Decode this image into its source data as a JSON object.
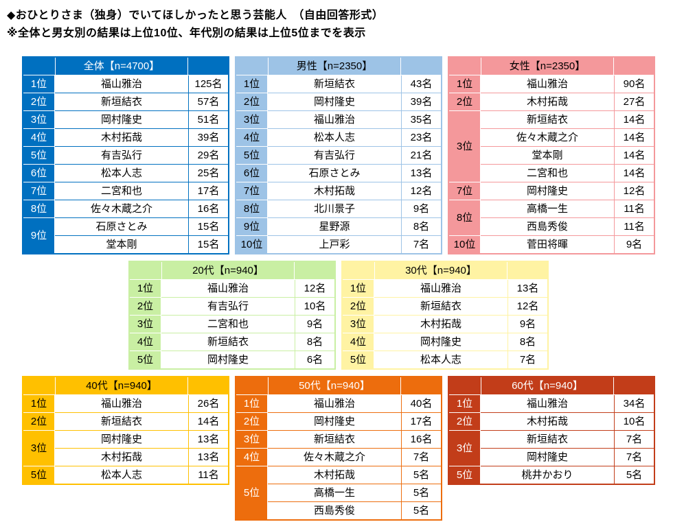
{
  "page": {
    "title": "◆おひとりさま（独身）でいてほしかったと思う芸能人　（自由回答形式）",
    "note": "※全体と男女別の結果は上位10位、年代別の結果は上位5位までを表示"
  },
  "tables": [
    {
      "key": "overall",
      "title": "全体【n=4700】",
      "colors": {
        "header_bg": "#0070C0",
        "header_text": "#FFFFFF",
        "border": "#0070C0"
      },
      "rows": [
        {
          "rank": "1位",
          "span": 1,
          "name": "福山雅治",
          "count": "125名"
        },
        {
          "rank": "2位",
          "span": 1,
          "name": "新垣結衣",
          "count": "57名"
        },
        {
          "rank": "3位",
          "span": 1,
          "name": "岡村隆史",
          "count": "51名"
        },
        {
          "rank": "4位",
          "span": 1,
          "name": "木村拓哉",
          "count": "39名"
        },
        {
          "rank": "5位",
          "span": 1,
          "name": "有吉弘行",
          "count": "29名"
        },
        {
          "rank": "6位",
          "span": 1,
          "name": "松本人志",
          "count": "25名"
        },
        {
          "rank": "7位",
          "span": 1,
          "name": "二宮和也",
          "count": "17名"
        },
        {
          "rank": "8位",
          "span": 1,
          "name": "佐々木蔵之介",
          "count": "16名"
        },
        {
          "rank": "9位",
          "span": 2,
          "name": "石原さとみ",
          "count": "15名"
        },
        {
          "rank": null,
          "name": "堂本剛",
          "count": "15名"
        }
      ]
    },
    {
      "key": "male",
      "title": "男性【n=2350】",
      "colors": {
        "header_bg": "#9DC3E6",
        "header_text": "#000000",
        "border": "#9DC3E6"
      },
      "rows": [
        {
          "rank": "1位",
          "span": 1,
          "name": "新垣結衣",
          "count": "43名"
        },
        {
          "rank": "2位",
          "span": 1,
          "name": "岡村隆史",
          "count": "39名"
        },
        {
          "rank": "3位",
          "span": 1,
          "name": "福山雅治",
          "count": "35名"
        },
        {
          "rank": "4位",
          "span": 1,
          "name": "松本人志",
          "count": "23名"
        },
        {
          "rank": "5位",
          "span": 1,
          "name": "有吉弘行",
          "count": "21名"
        },
        {
          "rank": "6位",
          "span": 1,
          "name": "石原さとみ",
          "count": "13名"
        },
        {
          "rank": "7位",
          "span": 1,
          "name": "木村拓哉",
          "count": "12名"
        },
        {
          "rank": "8位",
          "span": 1,
          "name": "北川景子",
          "count": "9名"
        },
        {
          "rank": "9位",
          "span": 1,
          "name": "星野源",
          "count": "8名"
        },
        {
          "rank": "10位",
          "span": 1,
          "name": "上戸彩",
          "count": "7名"
        }
      ]
    },
    {
      "key": "female",
      "title": "女性【n=2350】",
      "colors": {
        "header_bg": "#F4989B",
        "header_text": "#000000",
        "border": "#F4989B"
      },
      "rows": [
        {
          "rank": "1位",
          "span": 1,
          "name": "福山雅治",
          "count": "90名"
        },
        {
          "rank": "2位",
          "span": 1,
          "name": "木村拓哉",
          "count": "27名"
        },
        {
          "rank": "3位",
          "span": 4,
          "name": "新垣結衣",
          "count": "14名"
        },
        {
          "rank": null,
          "name": "佐々木蔵之介",
          "count": "14名"
        },
        {
          "rank": null,
          "name": "堂本剛",
          "count": "14名"
        },
        {
          "rank": null,
          "name": "二宮和也",
          "count": "14名"
        },
        {
          "rank": "7位",
          "span": 1,
          "name": "岡村隆史",
          "count": "12名"
        },
        {
          "rank": "8位",
          "span": 2,
          "name": "高橋一生",
          "count": "11名"
        },
        {
          "rank": null,
          "name": "西島秀俊",
          "count": "11名"
        },
        {
          "rank": "10位",
          "span": 1,
          "name": "菅田将暉",
          "count": "9名"
        }
      ]
    },
    {
      "key": "20s",
      "title": "20代【n=940】",
      "colors": {
        "header_bg": "#C9EFA3",
        "header_text": "#000000",
        "border": "#C9EFA3"
      },
      "rows": [
        {
          "rank": "1位",
          "span": 1,
          "name": "福山雅治",
          "count": "12名"
        },
        {
          "rank": "2位",
          "span": 1,
          "name": "有吉弘行",
          "count": "10名"
        },
        {
          "rank": "3位",
          "span": 1,
          "name": "二宮和也",
          "count": "9名"
        },
        {
          "rank": "4位",
          "span": 1,
          "name": "新垣結衣",
          "count": "8名"
        },
        {
          "rank": "5位",
          "span": 1,
          "name": "岡村隆史",
          "count": "6名"
        }
      ]
    },
    {
      "key": "30s",
      "title": "30代【n=940】",
      "colors": {
        "header_bg": "#FFF3A3",
        "header_text": "#000000",
        "border": "#FFF3A3"
      },
      "rows": [
        {
          "rank": "1位",
          "span": 1,
          "name": "福山雅治",
          "count": "13名"
        },
        {
          "rank": "2位",
          "span": 1,
          "name": "新垣結衣",
          "count": "12名"
        },
        {
          "rank": "3位",
          "span": 1,
          "name": "木村拓哉",
          "count": "9名"
        },
        {
          "rank": "4位",
          "span": 1,
          "name": "岡村隆史",
          "count": "8名"
        },
        {
          "rank": "5位",
          "span": 1,
          "name": "松本人志",
          "count": "7名"
        }
      ]
    },
    {
      "key": "40s",
      "title": "40代【n=940】",
      "colors": {
        "header_bg": "#FFC000",
        "header_text": "#000000",
        "border": "#FFC000"
      },
      "rows": [
        {
          "rank": "1位",
          "span": 1,
          "name": "福山雅治",
          "count": "26名"
        },
        {
          "rank": "2位",
          "span": 1,
          "name": "新垣結衣",
          "count": "14名"
        },
        {
          "rank": "3位",
          "span": 2,
          "name": "岡村隆史",
          "count": "13名"
        },
        {
          "rank": null,
          "name": "木村拓哉",
          "count": "13名"
        },
        {
          "rank": "5位",
          "span": 1,
          "name": "松本人志",
          "count": "11名"
        }
      ]
    },
    {
      "key": "50s",
      "title": "50代【n=940】",
      "colors": {
        "header_bg": "#ED6D0D",
        "header_text": "#FFFFFF",
        "border": "#ED6D0D"
      },
      "rows": [
        {
          "rank": "1位",
          "span": 1,
          "name": "福山雅治",
          "count": "40名"
        },
        {
          "rank": "2位",
          "span": 1,
          "name": "岡村隆史",
          "count": "17名"
        },
        {
          "rank": "3位",
          "span": 1,
          "name": "新垣結衣",
          "count": "16名"
        },
        {
          "rank": "4位",
          "span": 1,
          "name": "佐々木蔵之介",
          "count": "7名"
        },
        {
          "rank": "5位",
          "span": 3,
          "name": "木村拓哉",
          "count": "5名"
        },
        {
          "rank": null,
          "name": "高橋一生",
          "count": "5名"
        },
        {
          "rank": null,
          "name": "西島秀俊",
          "count": "5名"
        }
      ]
    },
    {
      "key": "60s",
      "title": "60代【n=940】",
      "colors": {
        "header_bg": "#C23D19",
        "header_text": "#FFFFFF",
        "border": "#C23D19"
      },
      "rows": [
        {
          "rank": "1位",
          "span": 1,
          "name": "福山雅治",
          "count": "34名"
        },
        {
          "rank": "2位",
          "span": 1,
          "name": "木村拓哉",
          "count": "10名"
        },
        {
          "rank": "3位",
          "span": 2,
          "name": "新垣結衣",
          "count": "7名"
        },
        {
          "rank": null,
          "name": "岡村隆史",
          "count": "7名"
        },
        {
          "rank": "5位",
          "span": 1,
          "name": "桃井かおり",
          "count": "5名"
        }
      ]
    }
  ]
}
